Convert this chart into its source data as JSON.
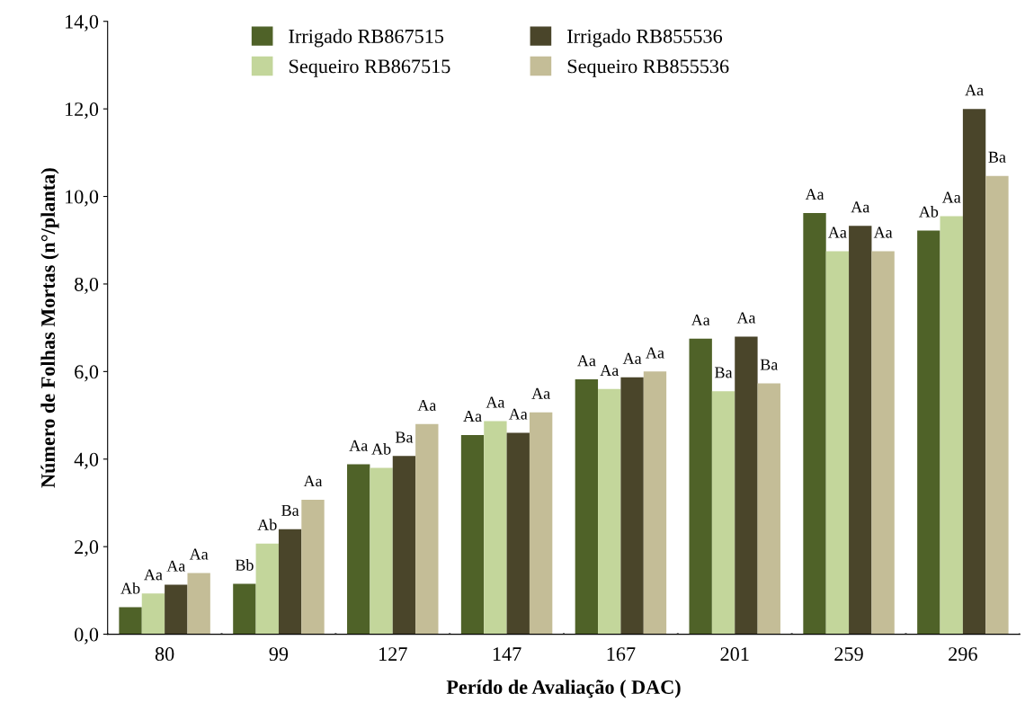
{
  "chart_data": {
    "type": "bar",
    "xlabel": "Perído de Avaliação ( DAC)",
    "ylabel": "Número de Folhas Mortas (n°/planta)",
    "categories": [
      "80",
      "99",
      "127",
      "147",
      "167",
      "201",
      "259",
      "296"
    ],
    "ylim": [
      0,
      14
    ],
    "yticks": [
      {
        "value": 0,
        "label": "0,0"
      },
      {
        "value": 2,
        "label": "2,0"
      },
      {
        "value": 4,
        "label": "4,0"
      },
      {
        "value": 6,
        "label": "6,0"
      },
      {
        "value": 8,
        "label": "8,0"
      },
      {
        "value": 10,
        "label": "10,0"
      },
      {
        "value": 12,
        "label": "12,0"
      },
      {
        "value": 14,
        "label": "14,0"
      }
    ],
    "grid": false,
    "legend": "top",
    "series": [
      {
        "name": "Irrigado RB867515",
        "color": "#4f6228",
        "values": [
          0.62,
          1.15,
          3.88,
          4.55,
          5.82,
          6.75,
          9.62,
          9.22
        ],
        "value_labels": [
          "Ab",
          "Bb",
          "Aa",
          "Aa",
          "Aa",
          "Aa",
          "Aa",
          "Ab"
        ]
      },
      {
        "name": "Sequeiro RB867515",
        "color": "#c3d69b",
        "values": [
          0.93,
          2.07,
          3.8,
          4.87,
          5.6,
          5.55,
          8.75,
          9.55
        ],
        "value_labels": [
          "Aa",
          "Ab",
          "Ab",
          "Aa",
          "Aa",
          "Ba",
          "Aa",
          "Aa"
        ]
      },
      {
        "name": "Irrigado RB855536",
        "color": "#4a452a",
        "values": [
          1.13,
          2.4,
          4.07,
          4.6,
          5.87,
          6.8,
          9.33,
          12.0
        ],
        "value_labels": [
          "Aa",
          "Ba",
          "Ba",
          "Aa",
          "Aa",
          "Aa",
          "Aa",
          "Aa"
        ]
      },
      {
        "name": "Sequeiro RB855536",
        "color": "#c4bd97",
        "values": [
          1.4,
          3.07,
          4.8,
          5.07,
          6.0,
          5.73,
          8.75,
          10.47
        ],
        "value_labels": [
          "Aa",
          "Aa",
          "Aa",
          "Aa",
          "Aa",
          "Ba",
          "Aa",
          "Ba"
        ]
      }
    ]
  }
}
